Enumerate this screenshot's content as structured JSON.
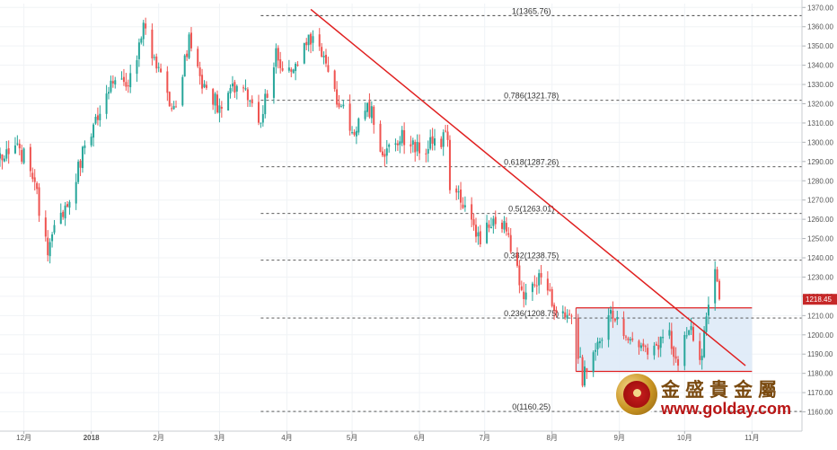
{
  "chart_data": {
    "type": "candlestick",
    "title": "",
    "xlabel": "",
    "ylabel": "",
    "ylim": [
      1150,
      1372
    ],
    "y_ticks": [
      1160,
      1170,
      1180,
      1190,
      1200,
      1210,
      1220,
      1230,
      1240,
      1250,
      1260,
      1270,
      1280,
      1290,
      1300,
      1310,
      1320,
      1330,
      1340,
      1350,
      1360,
      1370
    ],
    "x_ticks": [
      {
        "label": "12月",
        "date": "2017-12-01"
      },
      {
        "label": "2018",
        "date": "2018-01-01"
      },
      {
        "label": "2月",
        "date": "2018-02-01"
      },
      {
        "label": "3月",
        "date": "2018-03-01"
      },
      {
        "label": "4月",
        "date": "2018-04-01"
      },
      {
        "label": "5月",
        "date": "2018-05-01"
      },
      {
        "label": "6月",
        "date": "2018-06-01"
      },
      {
        "label": "7月",
        "date": "2018-07-01"
      },
      {
        "label": "8月",
        "date": "2018-08-01"
      },
      {
        "label": "9月",
        "date": "2018-09-01"
      },
      {
        "label": "10月",
        "date": "2018-10-01"
      },
      {
        "label": "11月",
        "date": "2018-11-01"
      }
    ],
    "x_range": [
      "2017-11-20",
      "2018-11-24"
    ],
    "price_tag": "1218.45",
    "last_price": 1218.45,
    "candle_colors": {
      "up": "#26a69a",
      "down": "#ef5350"
    },
    "path": [
      [
        "2017-11-20",
        1291
      ],
      [
        "2017-11-28",
        1297
      ],
      [
        "2017-12-04",
        1288
      ],
      [
        "2017-12-08",
        1266
      ],
      [
        "2017-12-12",
        1243
      ],
      [
        "2017-12-15",
        1255
      ],
      [
        "2017-12-22",
        1270
      ],
      [
        "2017-12-29",
        1298
      ],
      [
        "2018-01-05",
        1318
      ],
      [
        "2018-01-12",
        1335
      ],
      [
        "2018-01-17",
        1327
      ],
      [
        "2018-01-25",
        1358
      ],
      [
        "2018-01-31",
        1340
      ],
      [
        "2018-02-08",
        1317
      ],
      [
        "2018-02-15",
        1352
      ],
      [
        "2018-02-22",
        1328
      ],
      [
        "2018-03-01",
        1318
      ],
      [
        "2018-03-07",
        1331
      ],
      [
        "2018-03-14",
        1323
      ],
      [
        "2018-03-20",
        1312
      ],
      [
        "2018-03-27",
        1345
      ],
      [
        "2018-04-03",
        1335
      ],
      [
        "2018-04-11",
        1353
      ],
      [
        "2018-04-16",
        1347
      ],
      [
        "2018-04-24",
        1323
      ],
      [
        "2018-05-01",
        1306
      ],
      [
        "2018-05-10",
        1319
      ],
      [
        "2018-05-15",
        1290
      ],
      [
        "2018-05-24",
        1303
      ],
      [
        "2018-06-01",
        1297
      ],
      [
        "2018-06-08",
        1299
      ],
      [
        "2018-06-14",
        1302
      ],
      [
        "2018-06-15",
        1279
      ],
      [
        "2018-06-21",
        1268
      ],
      [
        "2018-06-28",
        1250
      ],
      [
        "2018-07-05",
        1259
      ],
      [
        "2018-07-10",
        1258
      ],
      [
        "2018-07-19",
        1222
      ],
      [
        "2018-07-26",
        1231
      ],
      [
        "2018-08-02",
        1216
      ],
      [
        "2018-08-10",
        1212
      ],
      [
        "2018-08-15",
        1178
      ],
      [
        "2018-08-22",
        1195
      ],
      [
        "2018-08-28",
        1212
      ],
      [
        "2018-09-06",
        1199
      ],
      [
        "2018-09-14",
        1193
      ],
      [
        "2018-09-24",
        1200
      ],
      [
        "2018-09-28",
        1186
      ],
      [
        "2018-10-03",
        1204
      ],
      [
        "2018-10-09",
        1185
      ],
      [
        "2018-10-11",
        1213
      ],
      [
        "2018-10-15",
        1231
      ],
      [
        "2018-10-17",
        1218
      ]
    ],
    "trendline": {
      "from": [
        "2018-04-12",
        1369
      ],
      "to": [
        "2018-10-29",
        1184
      ],
      "color": "#e02020"
    },
    "fibonacci": [
      {
        "label": "1(1365.76)",
        "value": 1365.76
      },
      {
        "label": "0.786(1321.78)",
        "value": 1321.78
      },
      {
        "label": "0.618(1287.26)",
        "value": 1287.26
      },
      {
        "label": "0.5(1263.01)",
        "value": 1263.01
      },
      {
        "label": "0.382(1238.75)",
        "value": 1238.75
      },
      {
        "label": "0.236(1208.75)",
        "value": 1208.75
      },
      {
        "label": "0(1160.25)",
        "value": 1160.25
      }
    ],
    "fib_x_start": "2018-03-20",
    "range_box": {
      "x_start": "2018-08-12",
      "x_end": "2018-11-01",
      "y_low": 1181,
      "y_high": 1214,
      "fill": "#dce9f7",
      "border": "#e02020"
    },
    "grid": true
  },
  "branding": {
    "name_cn": "金盛貴金屬",
    "url": "www.golday.com"
  }
}
